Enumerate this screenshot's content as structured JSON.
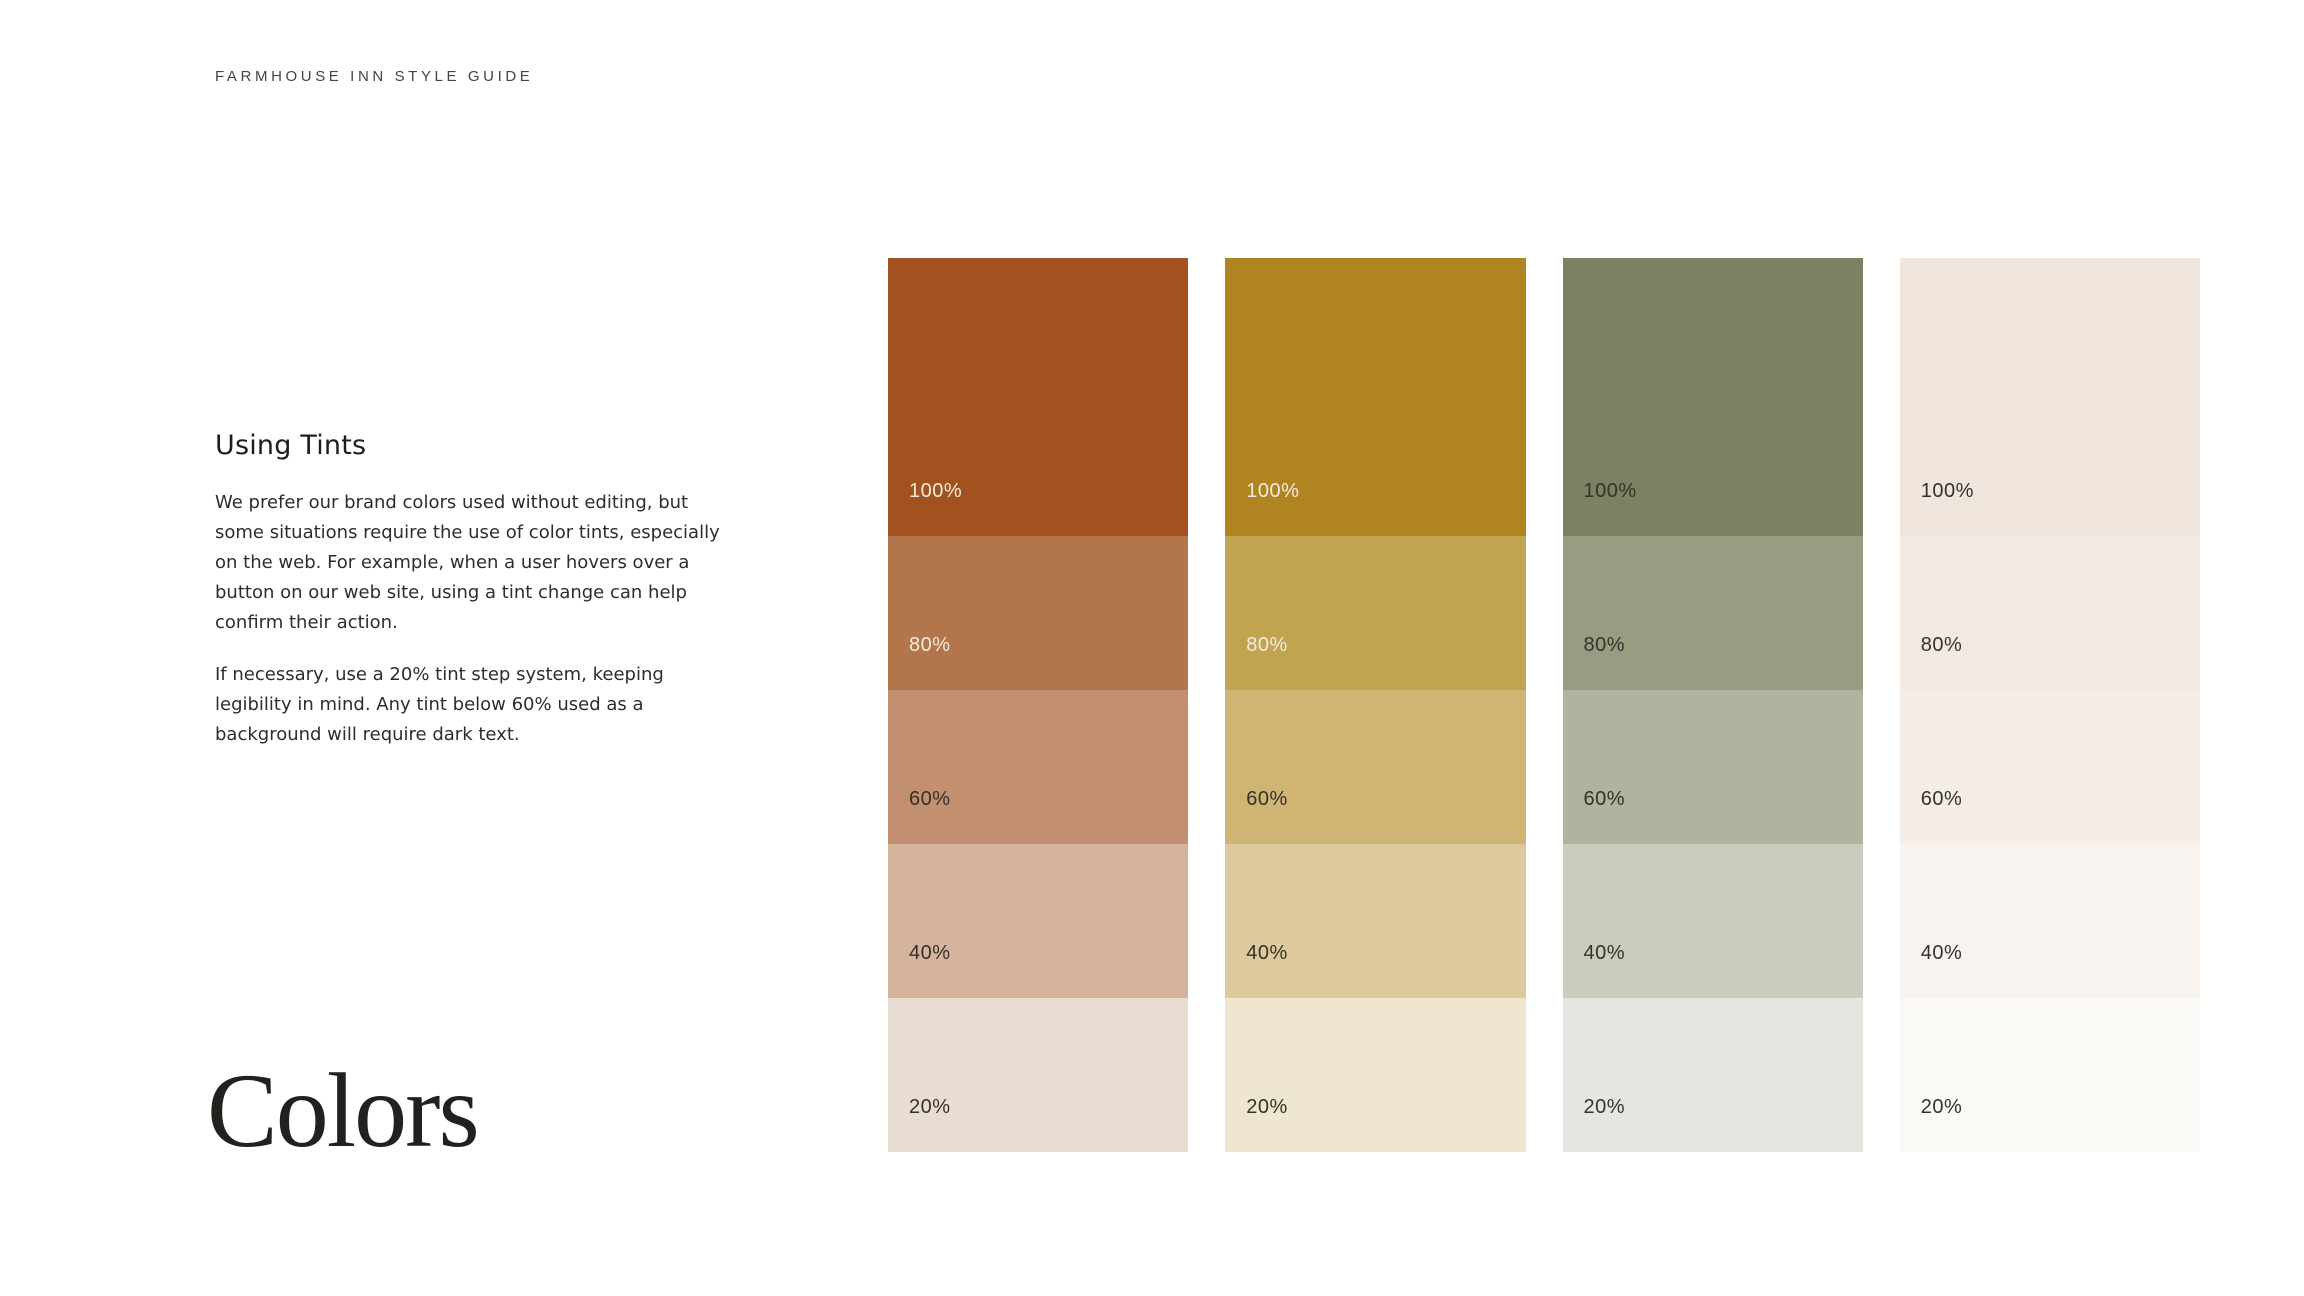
{
  "page": {
    "eyebrow": "FARMHOUSE INN STYLE GUIDE",
    "section": {
      "title": "Using Tints",
      "paragraphs": [
        "We prefer our brand colors used without editing, but some situations require the use of color tints, especially on the web. For example, when a user hovers over a button on our web site, using a tint change can help confirm their action.",
        "If necessary, use a 20% tint step system, keeping legibility in mind. Any tint below 60% used as a background will require dark text."
      ]
    },
    "wordmark": "Colors"
  },
  "theme": {
    "bg": "#FFFFFF",
    "eyebrow_color": "#45443F",
    "heading_color": "#1E1E1C",
    "body_color": "#2E2D2A",
    "wordmark_color": "#22211E",
    "swatch_label_light": "#F3ECDF",
    "swatch_label_dark": "#34322B"
  },
  "tint_scale": [
    "100%",
    "80%",
    "60%",
    "40%",
    "20%"
  ],
  "tint_columns": [
    {
      "name": "rust",
      "swatches": [
        {
          "label": "100%",
          "hex": "#A3521F",
          "label_style": "light"
        },
        {
          "label": "80%",
          "hex": "#B3754B",
          "label_style": "light"
        },
        {
          "label": "60%",
          "hex": "#C29070",
          "label_style": "dark"
        },
        {
          "label": "40%",
          "hex": "#D4B49D",
          "label_style": "dark"
        },
        {
          "label": "20%",
          "hex": "#E9DDD2",
          "label_style": "dark"
        }
      ]
    },
    {
      "name": "gold",
      "swatches": [
        {
          "label": "100%",
          "hex": "#B08521",
          "label_style": "light"
        },
        {
          "label": "80%",
          "hex": "#C2A350",
          "label_style": "light"
        },
        {
          "label": "60%",
          "hex": "#CFB474",
          "label_style": "dark"
        },
        {
          "label": "40%",
          "hex": "#DEC99C",
          "label_style": "dark"
        },
        {
          "label": "20%",
          "hex": "#EEE6CE",
          "label_style": "dark"
        }
      ]
    },
    {
      "name": "sage",
      "swatches": [
        {
          "label": "100%",
          "hex": "#7D8163",
          "label_style": "dark"
        },
        {
          "label": "80%",
          "hex": "#989C81",
          "label_style": "dark"
        },
        {
          "label": "60%",
          "hex": "#B0B39D",
          "label_style": "dark"
        },
        {
          "label": "40%",
          "hex": "#CACCBD",
          "label_style": "dark"
        },
        {
          "label": "20%",
          "hex": "#E5E6E0",
          "label_style": "dark"
        }
      ]
    },
    {
      "name": "cream",
      "swatches": [
        {
          "label": "100%",
          "hex": "#EFE5DC",
          "label_style": "dark"
        },
        {
          "label": "80%",
          "hex": "#F2EAE2",
          "label_style": "dark"
        },
        {
          "label": "60%",
          "hex": "#F5EEE8",
          "label_style": "dark"
        },
        {
          "label": "40%",
          "hex": "#F8F3EE",
          "label_style": "dark"
        },
        {
          "label": "20%",
          "hex": "#FBF9F6",
          "label_style": "dark"
        }
      ]
    }
  ]
}
